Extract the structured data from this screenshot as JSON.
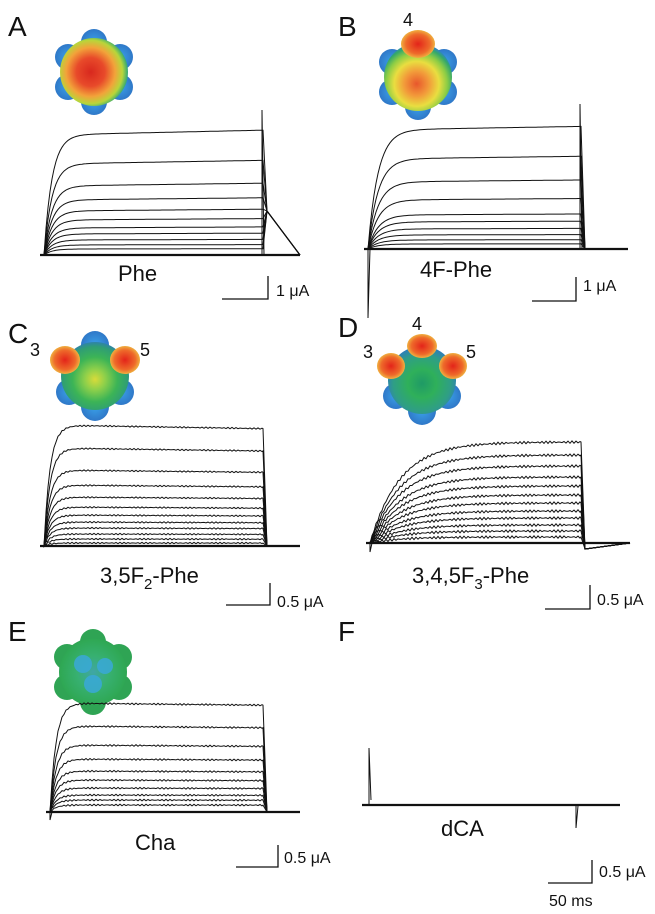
{
  "figure": {
    "panels": [
      {
        "id": "A",
        "letter": "A",
        "caption_main": "Phe",
        "caption_sub": "",
        "caption_suffix": "",
        "scale_label": "1 μA",
        "positions": [],
        "map": "red"
      },
      {
        "id": "B",
        "letter": "B",
        "caption_main": "4F-Phe",
        "caption_sub": "",
        "caption_suffix": "",
        "scale_label": "1 μA",
        "positions": [
          "4"
        ],
        "map": "red4"
      },
      {
        "id": "C",
        "letter": "C",
        "caption_main": "3,5F",
        "caption_sub": "2",
        "caption_suffix": "-Phe",
        "scale_label": "0.5 μA",
        "positions": [
          "3",
          "5"
        ],
        "map": "green35"
      },
      {
        "id": "D",
        "letter": "D",
        "caption_main": "3,4,5F",
        "caption_sub": "3",
        "caption_suffix": "-Phe",
        "scale_label": "0.5 μA",
        "positions": [
          "3",
          "4",
          "5"
        ],
        "map": "green345"
      },
      {
        "id": "E",
        "letter": "E",
        "caption_main": "Cha",
        "caption_sub": "",
        "caption_suffix": "",
        "scale_label": "0.5 μA",
        "positions": [],
        "map": "greenblue"
      },
      {
        "id": "F",
        "letter": "F",
        "caption_main": "dCA",
        "caption_sub": "",
        "caption_suffix": "",
        "scale_label": "0.5 μA",
        "time_label": "50 ms",
        "positions": [],
        "map": ""
      }
    ]
  },
  "colors": {
    "trace": "#111111",
    "map_red": "#e8402a",
    "map_orange": "#f08a2a",
    "map_yellow": "#e6df33",
    "map_green": "#2fb04f",
    "map_blue": "#2f7fd0"
  }
}
